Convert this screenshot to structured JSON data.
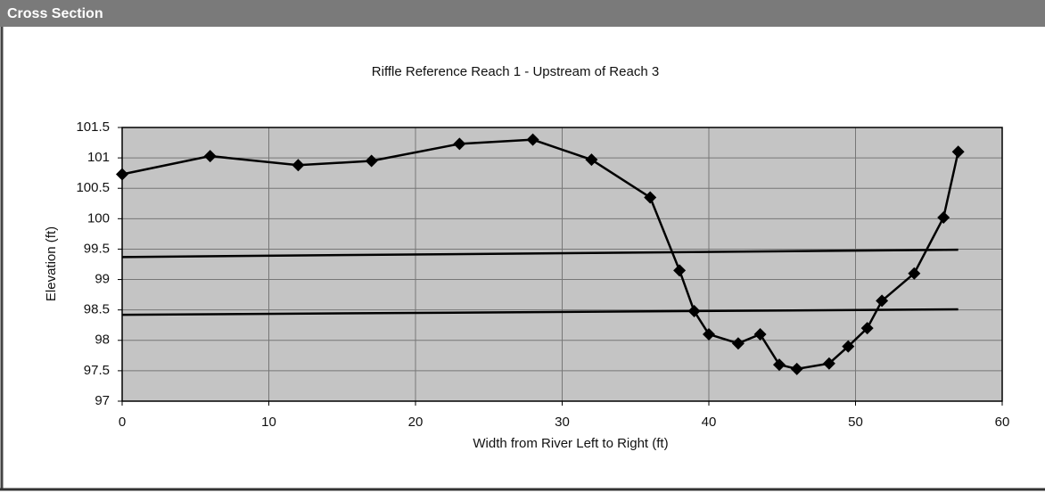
{
  "header": {
    "title": "Cross Section"
  },
  "chart_data": {
    "type": "line",
    "title": "Riffle Reference Reach 1 - Upstream of Reach 3",
    "x_label": "Width from River Left to Right (ft)",
    "y_label": "Elevation (ft)",
    "xlim": [
      0,
      60
    ],
    "xticks": [
      0,
      10,
      20,
      30,
      40,
      50,
      60
    ],
    "ylim": [
      97,
      101.5
    ],
    "yticks": [
      97,
      97.5,
      98,
      98.5,
      99,
      99.5,
      100,
      100.5,
      101,
      101.5
    ],
    "grid": true,
    "background": "#c4c4c4",
    "series": [
      {
        "color": "#000000",
        "marker": "diamond",
        "x": [
          0,
          6,
          12,
          17,
          23,
          28,
          32,
          36,
          38,
          39,
          40,
          42,
          43.5,
          44.8,
          46,
          48.2,
          49.5,
          50.8,
          51.8,
          54,
          56,
          57
        ],
        "values": [
          100.73,
          101.03,
          100.88,
          100.95,
          101.23,
          101.3,
          100.97,
          100.35,
          99.15,
          98.48,
          98.1,
          97.95,
          98.1,
          97.6,
          97.53,
          97.62,
          97.9,
          98.2,
          98.65,
          99.1,
          100.02,
          101.1
        ]
      },
      {
        "color": "#000000",
        "marker": "none",
        "x": [
          0,
          57
        ],
        "values": [
          99.37,
          99.49
        ]
      },
      {
        "color": "#000000",
        "marker": "none",
        "x": [
          0,
          57
        ],
        "values": [
          98.42,
          98.51
        ]
      }
    ]
  }
}
